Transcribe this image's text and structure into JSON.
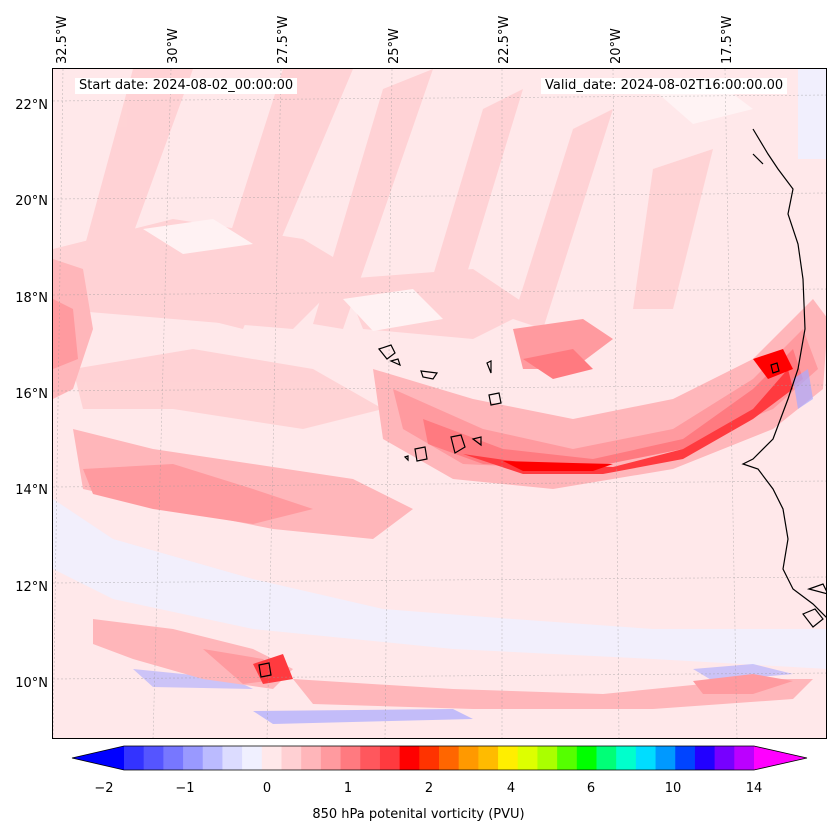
{
  "header": {
    "start_date": "Start date: 2024-08-02_00:00:00",
    "valid_date": "Valid_date: 2024-08-02T16:00:00.00"
  },
  "lon_labels": [
    "32.5°W",
    "30°W",
    "27.5°W",
    "25°W",
    "22.5°W",
    "20°W",
    "17.5°W"
  ],
  "lat_labels": [
    "22°N",
    "20°N",
    "18°N",
    "16°N",
    "14°N",
    "12°N",
    "10°N"
  ],
  "colorbar": {
    "title": "850 hPa potenital vorticity (PVU)",
    "ticks": [
      "−2",
      "−1",
      "0",
      "1",
      "2",
      "4",
      "6",
      "10",
      "14"
    ],
    "colors": [
      "#0000ff",
      "#3333ff",
      "#5555ff",
      "#7777ff",
      "#9999ff",
      "#bbbbff",
      "#dcdcff",
      "#f0f0ff",
      "#ffe8ea",
      "#ffd0d3",
      "#ffb6ba",
      "#ff9a9f",
      "#ff7a80",
      "#ff575d",
      "#ff3a3f",
      "#ff0000",
      "#ff3300",
      "#ff6600",
      "#ff9900",
      "#ffbb00",
      "#ffee00",
      "#ddff00",
      "#aaff00",
      "#55ff00",
      "#00ff00",
      "#00ff77",
      "#00ffcc",
      "#00ddff",
      "#0099ff",
      "#0044ff",
      "#2200ff",
      "#7700ff",
      "#bb00ff",
      "#ff00ff"
    ]
  },
  "map_features": {
    "colors": {
      "background": "#ffe8ea",
      "light": "#ffd0d3",
      "mid": "#ffb6ba",
      "strong": "#ff7a80",
      "deep": "#ff3a3f",
      "core": "#ff0000",
      "blue_light": "#e6e6ff",
      "blue": "#aaaaff"
    }
  }
}
